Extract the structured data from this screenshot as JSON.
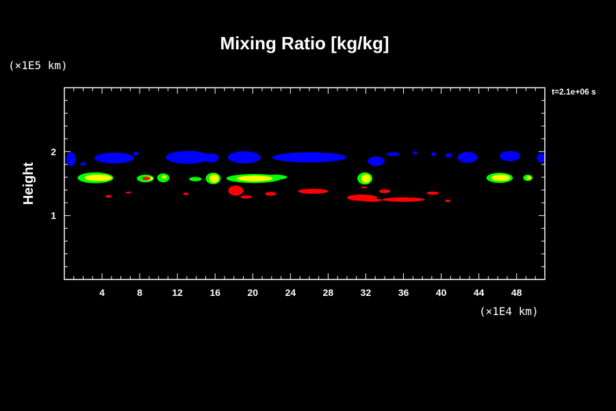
{
  "chart_data": {
    "type": "heatmap",
    "title": "Mixing Ratio [kg/kg]",
    "ylabel": "Height",
    "xlabel": "",
    "x_unit": "(×1E4 km)",
    "y_unit": "(×1E5 km)",
    "time_label": "t=2.1e+06 s",
    "xlim": [
      0,
      51
    ],
    "ylim": [
      0,
      3
    ],
    "x_ticks": [
      4,
      8,
      12,
      16,
      20,
      24,
      28,
      32,
      36,
      40,
      44,
      48
    ],
    "x_tick_labels": [
      "4",
      "8",
      "12",
      "16",
      "20",
      "24",
      "28",
      "32",
      "36",
      "40",
      "44",
      "48"
    ],
    "y_ticks": [
      1,
      2
    ],
    "y_tick_labels": [
      "1",
      "2"
    ],
    "x_minor_step": 1,
    "y_minor_step": 0.2,
    "colors": {
      "background": "#000000",
      "blue": "#0000ff",
      "green": "#00ff00",
      "yellow": "#ffff00",
      "red": "#ff0000",
      "frame": "#ffffff"
    },
    "cloud_bands": [
      {
        "name": "blue",
        "color": "#0000ff",
        "patches": [
          {
            "x": 0.7,
            "y": 1.88,
            "w": 1.0,
            "h": 0.22
          },
          {
            "x": 2.0,
            "y": 1.81,
            "w": 0.6,
            "h": 0.05
          },
          {
            "x": 5.3,
            "y": 1.9,
            "w": 4.2,
            "h": 0.17
          },
          {
            "x": 7.6,
            "y": 1.97,
            "w": 0.6,
            "h": 0.06
          },
          {
            "x": 13.1,
            "y": 1.91,
            "w": 4.7,
            "h": 0.2
          },
          {
            "x": 15.6,
            "y": 1.9,
            "w": 1.6,
            "h": 0.14
          },
          {
            "x": 19.1,
            "y": 1.91,
            "w": 3.5,
            "h": 0.19
          },
          {
            "x": 26.0,
            "y": 1.91,
            "w": 7.9,
            "h": 0.16
          },
          {
            "x": 33.1,
            "y": 1.85,
            "w": 1.8,
            "h": 0.15
          },
          {
            "x": 34.9,
            "y": 1.96,
            "w": 1.4,
            "h": 0.06
          },
          {
            "x": 37.2,
            "y": 1.98,
            "w": 0.5,
            "h": 0.05
          },
          {
            "x": 39.2,
            "y": 1.96,
            "w": 0.5,
            "h": 0.06
          },
          {
            "x": 40.8,
            "y": 1.94,
            "w": 0.7,
            "h": 0.07
          },
          {
            "x": 42.8,
            "y": 1.91,
            "w": 2.1,
            "h": 0.17
          },
          {
            "x": 47.3,
            "y": 1.93,
            "w": 2.2,
            "h": 0.16
          },
          {
            "x": 50.6,
            "y": 1.9,
            "w": 0.9,
            "h": 0.15
          }
        ]
      },
      {
        "name": "green",
        "color": "#00ff00",
        "patches": [
          {
            "x": 3.3,
            "y": 1.59,
            "w": 3.8,
            "h": 0.17
          },
          {
            "x": 8.6,
            "y": 1.58,
            "w": 1.8,
            "h": 0.12
          },
          {
            "x": 10.5,
            "y": 1.59,
            "w": 1.3,
            "h": 0.14
          },
          {
            "x": 13.9,
            "y": 1.57,
            "w": 1.3,
            "h": 0.07
          },
          {
            "x": 15.8,
            "y": 1.58,
            "w": 1.6,
            "h": 0.18
          },
          {
            "x": 20.1,
            "y": 1.58,
            "w": 5.8,
            "h": 0.14
          },
          {
            "x": 22.4,
            "y": 1.6,
            "w": 2.5,
            "h": 0.08
          },
          {
            "x": 31.9,
            "y": 1.58,
            "w": 1.6,
            "h": 0.19
          },
          {
            "x": 46.2,
            "y": 1.59,
            "w": 2.8,
            "h": 0.16
          },
          {
            "x": 49.2,
            "y": 1.59,
            "w": 1.0,
            "h": 0.1
          }
        ]
      },
      {
        "name": "yellow",
        "color": "#ffff00",
        "patches": [
          {
            "x": 3.6,
            "y": 1.59,
            "w": 2.9,
            "h": 0.1
          },
          {
            "x": 8.9,
            "y": 1.58,
            "w": 1.0,
            "h": 0.06
          },
          {
            "x": 10.6,
            "y": 1.6,
            "w": 0.5,
            "h": 0.05
          },
          {
            "x": 15.9,
            "y": 1.58,
            "w": 1.0,
            "h": 0.13
          },
          {
            "x": 20.2,
            "y": 1.58,
            "w": 3.8,
            "h": 0.09
          },
          {
            "x": 32.0,
            "y": 1.58,
            "w": 1.0,
            "h": 0.13
          },
          {
            "x": 46.3,
            "y": 1.59,
            "w": 2.0,
            "h": 0.1
          },
          {
            "x": 49.3,
            "y": 1.59,
            "w": 0.5,
            "h": 0.05
          }
        ]
      },
      {
        "name": "red",
        "color": "#ff0000",
        "patches": [
          {
            "x": 4.7,
            "y": 1.3,
            "w": 0.7,
            "h": 0.04
          },
          {
            "x": 6.8,
            "y": 1.36,
            "w": 0.6,
            "h": 0.03
          },
          {
            "x": 8.7,
            "y": 1.58,
            "w": 0.9,
            "h": 0.05
          },
          {
            "x": 12.9,
            "y": 1.34,
            "w": 0.6,
            "h": 0.04
          },
          {
            "x": 18.2,
            "y": 1.39,
            "w": 1.6,
            "h": 0.16
          },
          {
            "x": 19.3,
            "y": 1.29,
            "w": 1.2,
            "h": 0.05
          },
          {
            "x": 21.9,
            "y": 1.34,
            "w": 1.2,
            "h": 0.06
          },
          {
            "x": 26.4,
            "y": 1.38,
            "w": 3.2,
            "h": 0.08
          },
          {
            "x": 31.8,
            "y": 1.44,
            "w": 0.7,
            "h": 0.03
          },
          {
            "x": 31.6,
            "y": 1.28,
            "w": 3.2,
            "h": 0.1
          },
          {
            "x": 32.6,
            "y": 1.24,
            "w": 2.3,
            "h": 0.05
          },
          {
            "x": 34.0,
            "y": 1.38,
            "w": 1.2,
            "h": 0.06
          },
          {
            "x": 36.0,
            "y": 1.25,
            "w": 4.5,
            "h": 0.07
          },
          {
            "x": 39.1,
            "y": 1.35,
            "w": 1.3,
            "h": 0.05
          },
          {
            "x": 40.7,
            "y": 1.23,
            "w": 0.6,
            "h": 0.04
          }
        ]
      }
    ]
  }
}
